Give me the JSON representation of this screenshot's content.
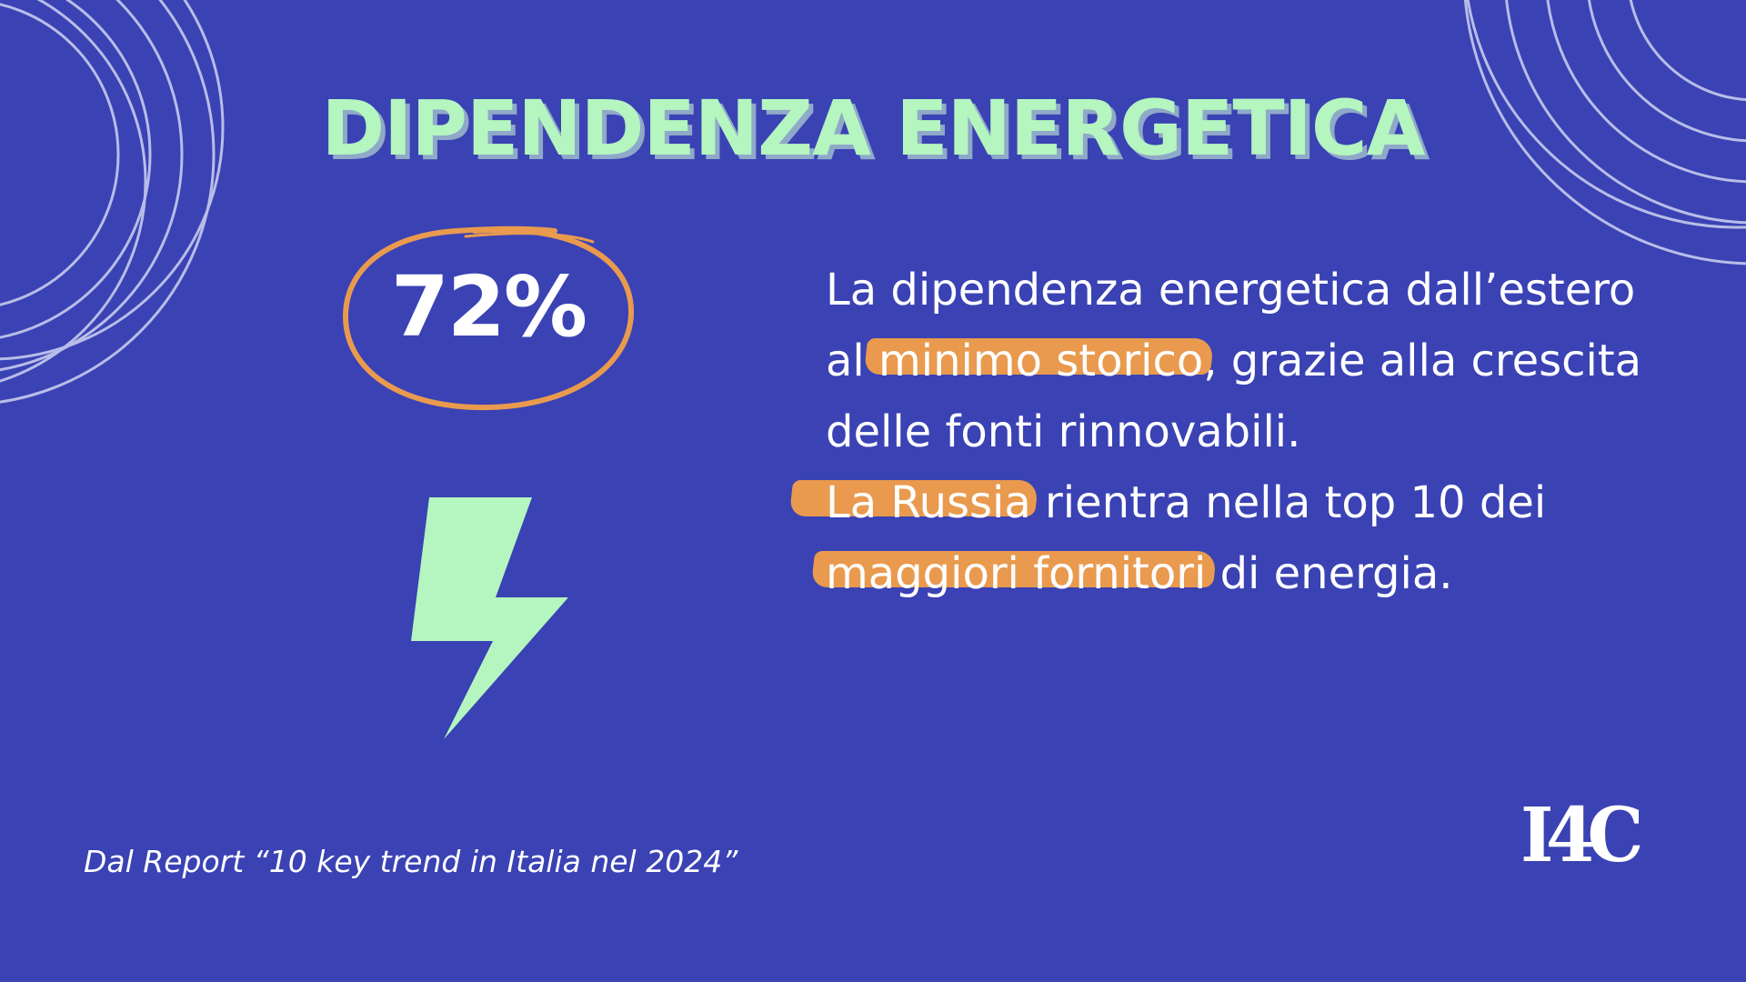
{
  "title": "DIPENDENZA ENERGETICA",
  "stat": {
    "value": "72%"
  },
  "body": {
    "p1_before": "La dipendenza energetica dall’estero al ",
    "p1_highlight": "minimo storico",
    "p1_after": ", grazie alla crescita delle fonti rinnovabili.",
    "p2_highlight_1": "La Russia",
    "p2_mid": " rientra nella top 10 dei ",
    "p2_highlight_2": "maggiori fornitori",
    "p2_after": " di energia."
  },
  "source": "Dal Report “10 key trend in Italia nel 2024”",
  "logo": "I4C",
  "icons": {
    "bolt": "lightning-bolt-icon",
    "decoration": "concentric-arcs"
  },
  "colors": {
    "background": "#3a42b4",
    "title": "#b4f5c0",
    "accent": "#e99a4e",
    "bolt": "#b4f5c0",
    "text": "#ffffff"
  }
}
